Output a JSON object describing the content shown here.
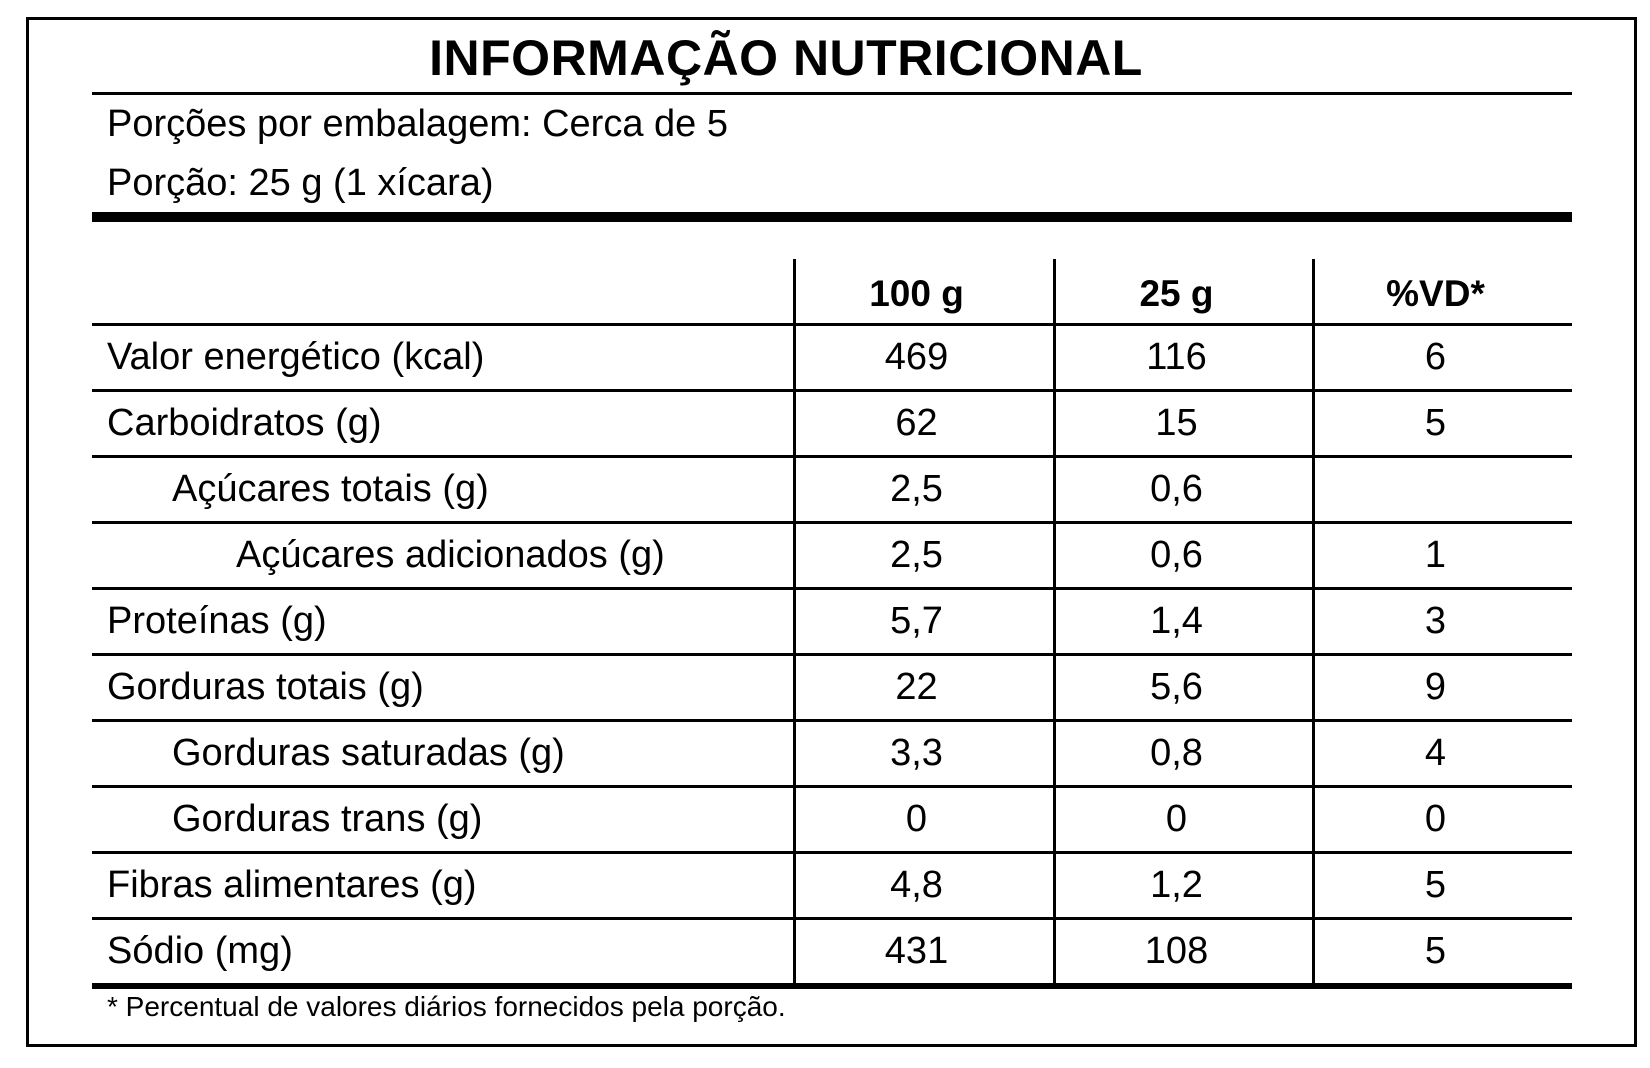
{
  "title": "INFORMAÇÃO NUTRICIONAL",
  "servings_per_package": "Porções por embalagem: Cerca de 5",
  "serving_size": "Porção: 25 g (1 xícara)",
  "columns": [
    "100 g",
    "25 g",
    "%VD*"
  ],
  "rows": [
    {
      "label": "Valor energético (kcal)",
      "indent": 0,
      "per100g": "469",
      "per25g": "116",
      "vd": "6"
    },
    {
      "label": "Carboidratos (g)",
      "indent": 0,
      "per100g": "62",
      "per25g": "15",
      "vd": "5"
    },
    {
      "label": "Açúcares totais (g)",
      "indent": 1,
      "per100g": "2,5",
      "per25g": "0,6",
      "vd": ""
    },
    {
      "label": "Açúcares adicionados (g)",
      "indent": 2,
      "per100g": "2,5",
      "per25g": "0,6",
      "vd": "1"
    },
    {
      "label": "Proteínas (g)",
      "indent": 0,
      "per100g": "5,7",
      "per25g": "1,4",
      "vd": "3"
    },
    {
      "label": "Gorduras totais (g)",
      "indent": 0,
      "per100g": "22",
      "per25g": "5,6",
      "vd": "9"
    },
    {
      "label": "Gorduras saturadas (g)",
      "indent": 1,
      "per100g": "3,3",
      "per25g": "0,8",
      "vd": "4"
    },
    {
      "label": "Gorduras trans (g)",
      "indent": 1,
      "per100g": "0",
      "per25g": "0",
      "vd": "0"
    },
    {
      "label": "Fibras alimentares (g)",
      "indent": 0,
      "per100g": "4,8",
      "per25g": "1,2",
      "vd": "5"
    },
    {
      "label": "Sódio (mg)",
      "indent": 0,
      "per100g": "431",
      "per25g": "108",
      "vd": "5"
    }
  ],
  "footnote": "* Percentual de valores diários fornecidos pela porção."
}
